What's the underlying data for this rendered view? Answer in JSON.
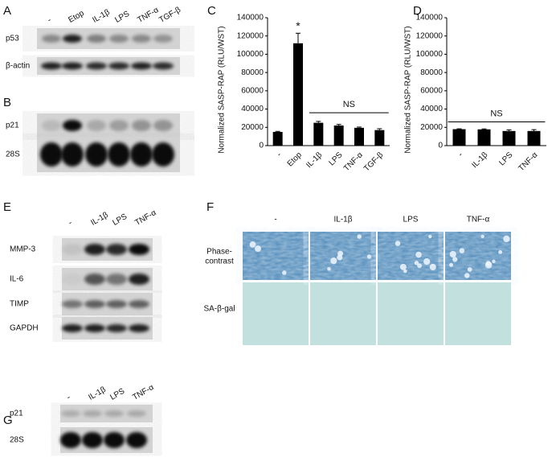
{
  "panels": {
    "A": {
      "letter": "A",
      "lanes": [
        "-",
        "Etop",
        "IL-1β",
        "LPS",
        "TNF-α",
        "TGF-β"
      ],
      "rows": [
        "p53",
        "β-actin"
      ]
    },
    "B": {
      "letter": "B",
      "rows": [
        "p21",
        "28S"
      ]
    },
    "E": {
      "letter": "E",
      "lanes": [
        "-",
        "IL-1β",
        "LPS",
        "TNF-α"
      ],
      "rows": [
        "MMP-3",
        "IL-6",
        "TIMP",
        "GAPDH"
      ]
    },
    "F": {
      "letter": "F",
      "columns": [
        "-",
        "IL-1β",
        "LPS",
        "TNF-α"
      ],
      "rows": [
        [
          "Phase-",
          "contrast"
        ],
        [
          "SA-β-gal"
        ]
      ]
    },
    "G": {
      "letter": "G",
      "lanes": [
        "-",
        "IL-1β",
        "LPS",
        "TNF-α"
      ],
      "rows": [
        "p21",
        "28S"
      ]
    }
  },
  "chart_data": [
    {
      "type": "bar",
      "letter": "C",
      "ylabel": "Normalized SASP-RAP (RLU/WST)",
      "categories": [
        "-",
        "Etop",
        "IL-1β",
        "LPS",
        "TNF-α",
        "TGF-β"
      ],
      "values": [
        15000,
        112000,
        25000,
        22000,
        19500,
        17000
      ],
      "errors": [
        600,
        11000,
        1500,
        1200,
        800,
        1500
      ],
      "color": "#000000",
      "ylim": [
        0,
        140000
      ],
      "yticks": [
        0,
        20000,
        40000,
        60000,
        80000,
        100000,
        120000,
        140000
      ],
      "annotations": {
        "star": "*",
        "bracket": "NS"
      }
    },
    {
      "type": "bar",
      "letter": "D",
      "ylabel": "Normalized SASP-RAP (RLU/WST)",
      "categories": [
        "-",
        "IL-1β",
        "LPS",
        "TNF-α"
      ],
      "values": [
        18000,
        17800,
        16000,
        16000
      ],
      "errors": [
        400,
        500,
        1200,
        1500
      ],
      "color": "#000000",
      "ylim": [
        0,
        140000
      ],
      "yticks": [
        0,
        20000,
        40000,
        60000,
        80000,
        100000,
        120000,
        140000
      ],
      "annotations": {
        "bracket": "NS"
      }
    }
  ]
}
